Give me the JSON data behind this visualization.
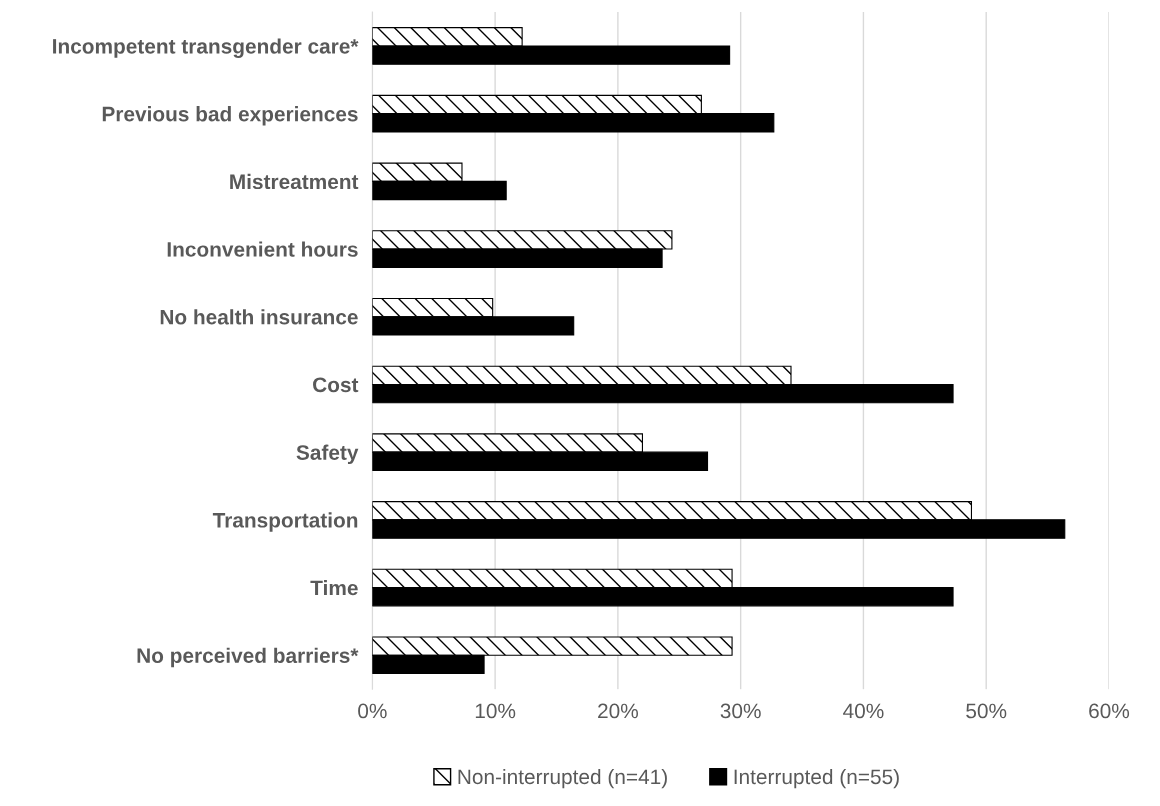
{
  "chart_data": {
    "type": "bar",
    "orientation": "horizontal",
    "categories": [
      "Incompetent transgender care*",
      "Previous bad experiences",
      "Mistreatment",
      "Inconvenient hours",
      "No health insurance",
      "Cost",
      "Safety",
      "Transportation",
      "Time",
      "No perceived barriers*"
    ],
    "series": [
      {
        "name": "Non-interrupted (n=41)",
        "color": "#000000",
        "values": [
          12.2,
          26.8,
          7.3,
          24.4,
          9.8,
          34.1,
          22.0,
          48.8,
          29.3,
          29.3
        ]
      },
      {
        "name": "Interrupted (n=55)",
        "color": "#000000",
        "values": [
          29.1,
          32.7,
          10.9,
          23.6,
          16.4,
          47.3,
          27.3,
          56.4,
          47.3,
          9.1
        ]
      }
    ],
    "xlim": [
      0,
      60
    ],
    "xticks": [
      {
        "value": 0,
        "label": "0%"
      },
      {
        "value": 10,
        "label": "10%"
      },
      {
        "value": 20,
        "label": "20%"
      },
      {
        "value": 30,
        "label": "30%"
      },
      {
        "value": 40,
        "label": "40%"
      },
      {
        "value": 50,
        "label": "50%"
      },
      {
        "value": 60,
        "label": "60%"
      }
    ],
    "grid": "x",
    "legend": "bottom"
  }
}
